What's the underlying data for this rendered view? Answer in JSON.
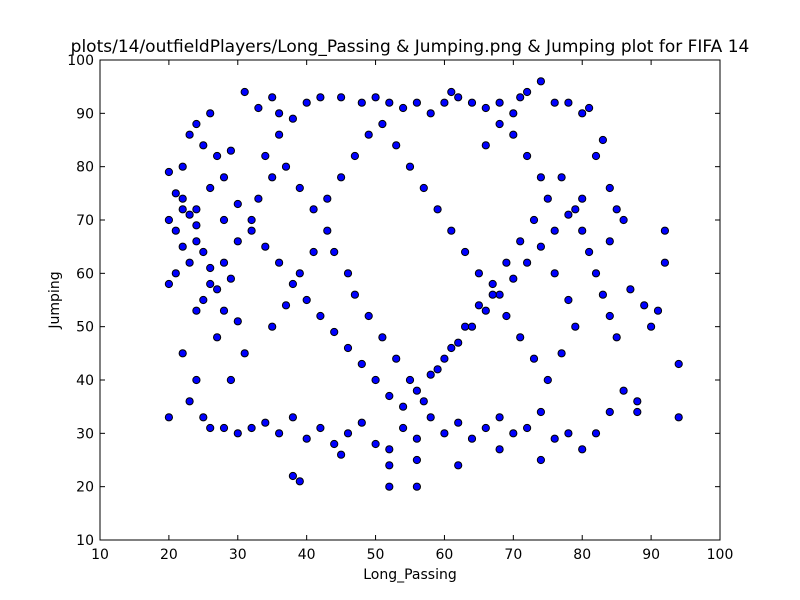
{
  "chart_data": {
    "type": "scatter",
    "title": "plots/14/outfieldPlayers/Long_Passing & Jumping.png & Jumping plot for FIFA 14",
    "xlabel": "Long_Passing",
    "ylabel": "Jumping",
    "xlim": [
      10,
      100
    ],
    "ylim": [
      10,
      100
    ],
    "xticks": [
      10,
      20,
      30,
      40,
      50,
      60,
      70,
      80,
      90,
      100
    ],
    "yticks": [
      10,
      20,
      30,
      40,
      50,
      60,
      70,
      80,
      90,
      100
    ],
    "grid": false,
    "marker_color": "#0000ff",
    "marker_edge_color": "#000000",
    "series": [
      {
        "points": [
          [
            20,
            33
          ],
          [
            22,
            45
          ],
          [
            24,
            40
          ],
          [
            25,
            33
          ],
          [
            20,
            58
          ],
          [
            21,
            60
          ],
          [
            22,
            65
          ],
          [
            23,
            62
          ],
          [
            24,
            66
          ],
          [
            25,
            55
          ],
          [
            20,
            70
          ],
          [
            21,
            75
          ],
          [
            22,
            80
          ],
          [
            23,
            86
          ],
          [
            24,
            88
          ],
          [
            25,
            84
          ],
          [
            26,
            90
          ],
          [
            27,
            82
          ],
          [
            28,
            78
          ],
          [
            29,
            83
          ],
          [
            20,
            79
          ],
          [
            21,
            68
          ],
          [
            22,
            72
          ],
          [
            23,
            71
          ],
          [
            24,
            69
          ],
          [
            25,
            64
          ],
          [
            26,
            61
          ],
          [
            27,
            57
          ],
          [
            28,
            53
          ],
          [
            29,
            59
          ],
          [
            31,
            94
          ],
          [
            33,
            91
          ],
          [
            35,
            93
          ],
          [
            36,
            90
          ],
          [
            38,
            89
          ],
          [
            40,
            92
          ],
          [
            42,
            93
          ],
          [
            45,
            93
          ],
          [
            48,
            92
          ],
          [
            50,
            93
          ],
          [
            52,
            92
          ],
          [
            54,
            91
          ],
          [
            56,
            92
          ],
          [
            58,
            90
          ],
          [
            60,
            92
          ],
          [
            61,
            94
          ],
          [
            62,
            93
          ],
          [
            64,
            92
          ],
          [
            66,
            91
          ],
          [
            68,
            92
          ],
          [
            70,
            90
          ],
          [
            71,
            93
          ],
          [
            72,
            94
          ],
          [
            74,
            96
          ],
          [
            76,
            92
          ],
          [
            78,
            92
          ],
          [
            80,
            90
          ],
          [
            81,
            91
          ],
          [
            38,
            22
          ],
          [
            39,
            21
          ],
          [
            52,
            20
          ],
          [
            56,
            20
          ],
          [
            62,
            24
          ],
          [
            52,
            24
          ],
          [
            74,
            25
          ],
          [
            56,
            25
          ],
          [
            45,
            26
          ],
          [
            68,
            27
          ],
          [
            30,
            30
          ],
          [
            28,
            31
          ],
          [
            32,
            31
          ],
          [
            34,
            32
          ],
          [
            36,
            30
          ],
          [
            38,
            33
          ],
          [
            40,
            29
          ],
          [
            42,
            31
          ],
          [
            44,
            28
          ],
          [
            46,
            30
          ],
          [
            48,
            32
          ],
          [
            50,
            28
          ],
          [
            52,
            27
          ],
          [
            54,
            31
          ],
          [
            56,
            29
          ],
          [
            58,
            33
          ],
          [
            60,
            30
          ],
          [
            62,
            32
          ],
          [
            64,
            29
          ],
          [
            66,
            31
          ],
          [
            68,
            33
          ],
          [
            70,
            30
          ],
          [
            72,
            31
          ],
          [
            74,
            34
          ],
          [
            76,
            29
          ],
          [
            78,
            30
          ],
          [
            80,
            27
          ],
          [
            82,
            30
          ],
          [
            84,
            34
          ],
          [
            86,
            38
          ],
          [
            88,
            34
          ],
          [
            88,
            36
          ],
          [
            92,
            62
          ],
          [
            92,
            68
          ],
          [
            94,
            43
          ],
          [
            94,
            33
          ],
          [
            90,
            50
          ],
          [
            89,
            54
          ],
          [
            91,
            53
          ],
          [
            87,
            57
          ],
          [
            23,
            36
          ],
          [
            26,
            31
          ],
          [
            29,
            40
          ],
          [
            31,
            45
          ],
          [
            27,
            48
          ],
          [
            30,
            51
          ],
          [
            24,
            53
          ],
          [
            26,
            58
          ],
          [
            28,
            62
          ],
          [
            30,
            66
          ],
          [
            32,
            70
          ],
          [
            33,
            74
          ],
          [
            35,
            78
          ],
          [
            34,
            82
          ],
          [
            36,
            86
          ],
          [
            37,
            80
          ],
          [
            39,
            76
          ],
          [
            41,
            72
          ],
          [
            43,
            68
          ],
          [
            44,
            64
          ],
          [
            46,
            60
          ],
          [
            47,
            56
          ],
          [
            49,
            52
          ],
          [
            51,
            48
          ],
          [
            53,
            44
          ],
          [
            55,
            40
          ],
          [
            57,
            36
          ],
          [
            59,
            42
          ],
          [
            61,
            46
          ],
          [
            63,
            50
          ],
          [
            65,
            54
          ],
          [
            67,
            58
          ],
          [
            69,
            62
          ],
          [
            71,
            66
          ],
          [
            73,
            70
          ],
          [
            75,
            74
          ],
          [
            77,
            78
          ],
          [
            79,
            72
          ],
          [
            80,
            68
          ],
          [
            81,
            64
          ],
          [
            82,
            60
          ],
          [
            83,
            56
          ],
          [
            84,
            52
          ],
          [
            85,
            48
          ],
          [
            84,
            66
          ],
          [
            85,
            72
          ],
          [
            86,
            70
          ],
          [
            84,
            76
          ],
          [
            82,
            82
          ],
          [
            83,
            85
          ],
          [
            22,
            74
          ],
          [
            24,
            72
          ],
          [
            26,
            76
          ],
          [
            28,
            70
          ],
          [
            30,
            73
          ],
          [
            32,
            68
          ],
          [
            34,
            65
          ],
          [
            36,
            62
          ],
          [
            38,
            58
          ],
          [
            40,
            55
          ],
          [
            42,
            52
          ],
          [
            44,
            49
          ],
          [
            46,
            46
          ],
          [
            48,
            43
          ],
          [
            50,
            40
          ],
          [
            52,
            37
          ],
          [
            54,
            35
          ],
          [
            56,
            38
          ],
          [
            58,
            41
          ],
          [
            60,
            44
          ],
          [
            62,
            47
          ],
          [
            64,
            50
          ],
          [
            66,
            53
          ],
          [
            68,
            56
          ],
          [
            70,
            59
          ],
          [
            72,
            62
          ],
          [
            74,
            65
          ],
          [
            76,
            68
          ],
          [
            78,
            71
          ],
          [
            80,
            74
          ],
          [
            35,
            50
          ],
          [
            37,
            54
          ],
          [
            39,
            60
          ],
          [
            41,
            64
          ],
          [
            43,
            74
          ],
          [
            45,
            78
          ],
          [
            47,
            82
          ],
          [
            49,
            86
          ],
          [
            51,
            88
          ],
          [
            53,
            84
          ],
          [
            55,
            80
          ],
          [
            57,
            76
          ],
          [
            59,
            72
          ],
          [
            61,
            68
          ],
          [
            63,
            64
          ],
          [
            65,
            60
          ],
          [
            67,
            56
          ],
          [
            69,
            52
          ],
          [
            71,
            48
          ],
          [
            73,
            44
          ],
          [
            75,
            40
          ],
          [
            77,
            45
          ],
          [
            79,
            50
          ],
          [
            78,
            55
          ],
          [
            76,
            60
          ],
          [
            74,
            78
          ],
          [
            72,
            82
          ],
          [
            70,
            86
          ],
          [
            68,
            88
          ],
          [
            66,
            84
          ]
        ]
      }
    ]
  }
}
